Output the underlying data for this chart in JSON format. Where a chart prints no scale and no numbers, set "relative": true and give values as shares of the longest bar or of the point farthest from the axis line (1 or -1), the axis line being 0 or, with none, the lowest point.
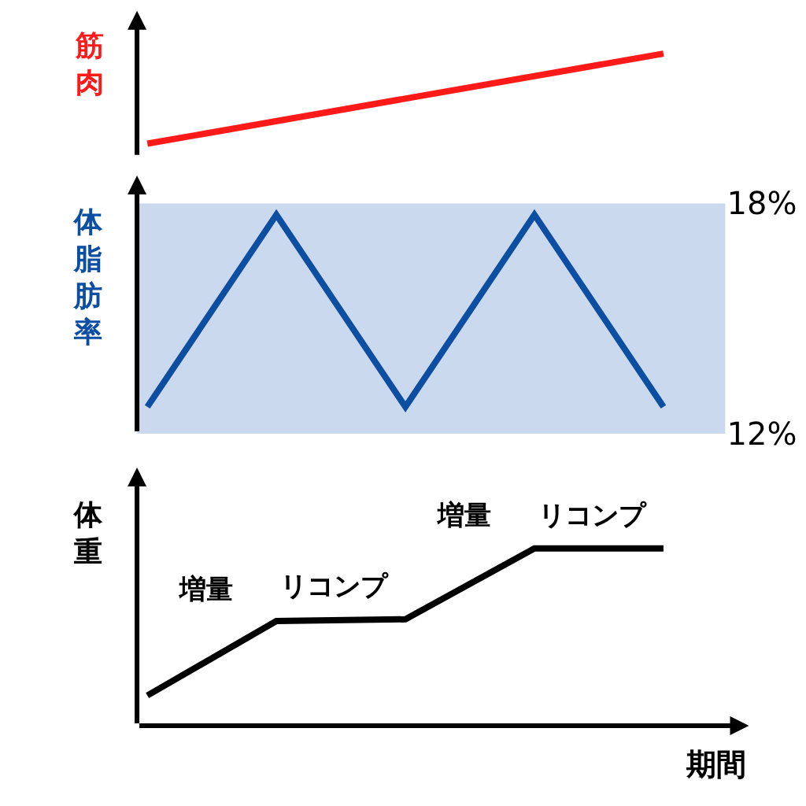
{
  "chart_data": [
    {
      "type": "line",
      "ylabel": "筋肉",
      "relative": true,
      "categories": [
        null,
        null
      ],
      "series": [
        {
          "color": "#ff1a1a",
          "values": [
            0,
            1
          ]
        }
      ],
      "grid": false,
      "tick_labels": false,
      "marker": "none",
      "line_style": "solid"
    },
    {
      "type": "line",
      "ylabel": "体脂肪率",
      "categories": [
        null,
        null,
        null,
        null,
        null
      ],
      "ylim": [
        12,
        18
      ],
      "yticks": [
        {
          "value": 18,
          "label": "18%"
        },
        {
          "value": 12,
          "label": "12%"
        }
      ],
      "bands": [
        {
          "axis": "y",
          "from": 12,
          "to": 18,
          "color": "#cbd9ee"
        }
      ],
      "series": [
        {
          "color": "#0b4ea2",
          "values": [
            12.7,
            17.7,
            12.7,
            17.7,
            12.7
          ]
        }
      ],
      "grid": false,
      "tick_labels": "y",
      "marker": "none",
      "line_style": "solid"
    },
    {
      "type": "line",
      "ylabel": "体重",
      "xlabel": "期間",
      "relative": true,
      "categories": [
        null,
        null,
        null,
        null,
        null
      ],
      "annotations": [
        "増量",
        "リコンプ",
        "増量",
        "リコンプ"
      ],
      "series": [
        {
          "color": "#000000",
          "values": [
            0.17,
            0.59,
            0.6,
            1,
            1
          ]
        }
      ],
      "grid": false,
      "tick_labels": false,
      "marker": "none",
      "line_style": "solid"
    }
  ]
}
